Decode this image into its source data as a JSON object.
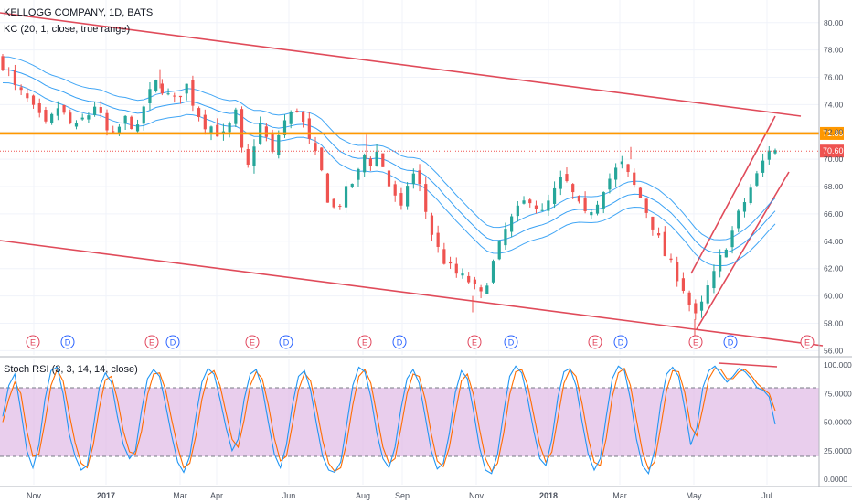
{
  "legend": {
    "symbol": "KELLOGG COMPANY, 1D, BATS",
    "indicator": "KC (20, 1, close, true range)",
    "oscillator": "Stoch RSI (3, 3, 14, 14, close)"
  },
  "colors": {
    "candle_up": "#26a69a",
    "candle_down": "#ef5350",
    "keltner": "#2196f3",
    "trendline": "#e04b5a",
    "resistance": "#ff9800",
    "price_line": "#ef5350",
    "stoch_k": "#2196f3",
    "stoch_d": "#ff6d00",
    "stoch_band": "#e1bee7"
  },
  "chart_data": [
    {
      "type": "candlestick",
      "title": "KELLOGG COMPANY, 1D, BATS",
      "ylim": [
        55.5,
        80
      ],
      "y_ticks": [
        "80.00",
        "78.00",
        "76.00",
        "74.00",
        "72.00",
        "70.00",
        "68.00",
        "66.00",
        "64.00",
        "62.00",
        "60.00",
        "58.00",
        "56.00"
      ],
      "x_ticks": [
        {
          "label": "Nov",
          "bold": false
        },
        {
          "label": "2017",
          "bold": true
        },
        {
          "label": "Mar",
          "bold": false
        },
        {
          "label": "Apr",
          "bold": false
        },
        {
          "label": "Jun",
          "bold": false
        },
        {
          "label": "Aug",
          "bold": false
        },
        {
          "label": "Sep",
          "bold": false
        },
        {
          "label": "Nov",
          "bold": false
        },
        {
          "label": "2018",
          "bold": true
        },
        {
          "label": "Mar",
          "bold": false
        },
        {
          "label": "May",
          "bold": false
        },
        {
          "label": "Jul",
          "bold": false
        }
      ],
      "close_path": [
        77.0,
        76.3,
        75.2,
        74.8,
        74.3,
        73.6,
        73.0,
        72.4,
        73.0,
        73.8,
        73.2,
        72.6,
        72.3,
        72.9,
        73.3,
        74.0,
        73.0,
        72.0,
        71.6,
        72.3,
        72.9,
        72.6,
        72.1,
        73.9,
        74.8,
        75.6,
        75.2,
        74.6,
        74.3,
        74.9,
        75.4,
        74.2,
        73.3,
        72.6,
        72.4,
        72.0,
        71.7,
        72.4,
        73.3,
        70.5,
        69.4,
        71.2,
        72.5,
        71.5,
        70.3,
        71.8,
        72.8,
        73.2,
        73.8,
        72.6,
        71.2,
        70.2,
        69.0,
        67.2,
        66.4,
        66.8,
        67.6,
        68.3,
        69.0,
        70.3,
        69.8,
        70.5,
        69.5,
        68.1,
        67.1,
        66.2,
        68.2,
        68.9,
        68.0,
        66.2,
        64.6,
        63.4,
        62.6,
        62.0,
        61.6,
        61.3,
        61.1,
        60.5,
        60.0,
        61.2,
        62.4,
        63.6,
        64.8,
        65.6,
        66.2,
        66.8,
        67.2,
        66.6,
        66.0,
        66.8,
        67.6,
        68.4,
        68.2,
        67.4,
        66.5,
        65.8,
        66.4,
        67.0,
        68.0,
        68.6,
        69.2,
        69.6,
        68.8,
        68.0,
        67.2,
        66.2,
        65.2,
        64.1,
        63.0,
        62.2,
        61.5,
        60.6,
        59.4,
        58.4,
        59.3,
        60.6,
        61.5,
        62.7,
        63.8,
        64.7,
        65.9,
        66.9,
        67.9,
        68.8,
        69.8,
        70.8,
        70.6
      ],
      "levels": {
        "resistance": "71.89",
        "last_price": "70.60"
      },
      "earnings_dates": [
        "E",
        "E",
        "E",
        "E",
        "E",
        "E",
        "E",
        "E"
      ],
      "dividend_dates": [
        "D",
        "D",
        "D",
        "D",
        "D",
        "D",
        "D"
      ]
    },
    {
      "type": "line",
      "title": "Stoch RSI (3, 3, 14, 14, close)",
      "ylim": [
        0,
        100
      ],
      "y_ticks": [
        "100.0000",
        "75.0000",
        "50.0000",
        "25.0000",
        "0.0000"
      ],
      "band": [
        20,
        80
      ],
      "series": [
        {
          "values": [
            55,
            82,
            92,
            60,
            25,
            10,
            30,
            70,
            95,
            98,
            75,
            40,
            20,
            8,
            12,
            45,
            80,
            93,
            85,
            55,
            30,
            18,
            25,
            60,
            88,
            96,
            90,
            65,
            38,
            15,
            6,
            20,
            55,
            85,
            97,
            92,
            70,
            45,
            25,
            35,
            70,
            92,
            96,
            80,
            50,
            22,
            10,
            30,
            65,
            90,
            95,
            78,
            48,
            20,
            8,
            6,
            15,
            48,
            82,
            98,
            94,
            72,
            40,
            18,
            10,
            28,
            62,
            88,
            96,
            84,
            55,
            25,
            9,
            14,
            40,
            76,
            95,
            88,
            60,
            28,
            8,
            5,
            22,
            58,
            90,
            99,
            93,
            70,
            42,
            18,
            12,
            35,
            72,
            94,
            97,
            82,
            50,
            22,
            8,
            18,
            55,
            88,
            99,
            95,
            70,
            35,
            12,
            5,
            25,
            65,
            92,
            98,
            90,
            62,
            30,
            45,
            80,
            95,
            99,
            92,
            85,
            90,
            97,
            94,
            88,
            80,
            78,
            72,
            48
          ]
        },
        {
          "values": [
            50,
            70,
            85,
            75,
            42,
            20,
            22,
            50,
            82,
            96,
            86,
            58,
            32,
            14,
            10,
            30,
            62,
            87,
            90,
            70,
            42,
            24,
            22,
            42,
            74,
            92,
            93,
            78,
            52,
            28,
            10,
            14,
            38,
            70,
            91,
            95,
            82,
            58,
            35,
            28,
            52,
            82,
            94,
            88,
            65,
            36,
            16,
            20,
            48,
            78,
            93,
            86,
            62,
            34,
            14,
            7,
            10,
            32,
            65,
            90,
            96,
            84,
            56,
            28,
            14,
            18,
            45,
            75,
            92,
            90,
            70,
            40,
            16,
            11,
            28,
            58,
            86,
            92,
            74,
            44,
            18,
            7,
            14,
            40,
            74,
            94,
            96,
            82,
            56,
            30,
            15,
            24,
            54,
            84,
            96,
            90,
            66,
            36,
            15,
            12,
            36,
            72,
            93,
            97,
            82,
            52,
            24,
            9,
            15,
            45,
            78,
            95,
            94,
            76,
            46,
            38,
            62,
            88,
            97,
            96,
            88,
            88,
            94,
            96,
            91,
            84,
            79,
            75,
            60
          ]
        }
      ]
    }
  ]
}
